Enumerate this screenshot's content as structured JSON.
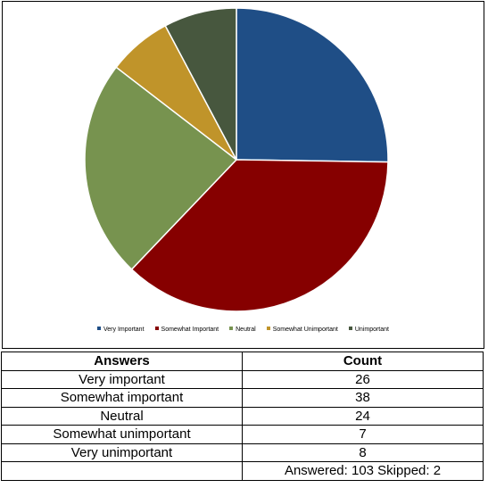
{
  "chart_data": {
    "type": "pie",
    "title": "",
    "categories": [
      "Very Important",
      "Somewhat Important",
      "Neutral",
      "Somewhat Unimportant",
      "Unimportant"
    ],
    "values": [
      26,
      38,
      24,
      7,
      8
    ],
    "colors": [
      "#1f4e86",
      "#860000",
      "#77934f",
      "#c0942a",
      "#47573e"
    ],
    "start_angle_deg": 0,
    "direction": "clockwise",
    "legend_position": "bottom"
  },
  "table": {
    "headers": [
      "Answers",
      "Count"
    ],
    "rows": [
      [
        "Very important",
        "26"
      ],
      [
        "Somewhat important",
        "38"
      ],
      [
        "Neutral",
        "24"
      ],
      [
        "Somewhat unimportant",
        "7"
      ],
      [
        "Very unimportant",
        "8"
      ]
    ],
    "summary": "Answered: 103  Skipped: 2"
  }
}
